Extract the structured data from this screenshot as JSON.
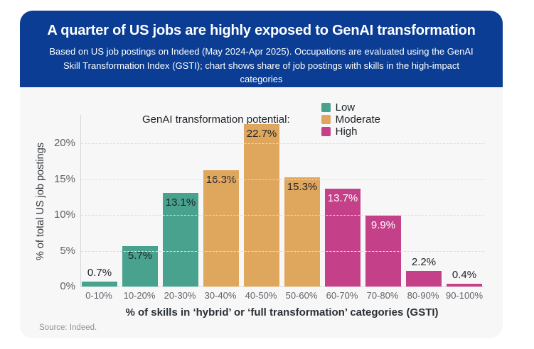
{
  "header": {
    "title": "A quarter of US jobs are highly exposed to GenAI transformation",
    "subtitle": "Based on US job postings on Indeed (May 2024-Apr 2025). Occupations are evaluated using the GenAI Skill Transformation Index (GSTI); chart shows share of job postings with skills in the high-impact categories",
    "background_color": "#0a3d93",
    "text_color": "#ffffff"
  },
  "legend": {
    "title": "GenAI transformation potential:",
    "items": [
      {
        "label": "Low",
        "color": "#48a28e"
      },
      {
        "label": "Moderate",
        "color": "#dfa65e"
      },
      {
        "label": "High",
        "color": "#c4418a"
      }
    ]
  },
  "chart_data": {
    "type": "bar",
    "title": "",
    "xlabel": "% of skills in ‘hybrid’ or ‘full transformation’ categories (GSTI)",
    "ylabel": "% of total US job postings",
    "ylim": [
      0,
      24
    ],
    "yticks": [
      0,
      5,
      10,
      15,
      20
    ],
    "ytick_labels": [
      "0%",
      "5%",
      "10%",
      "15%",
      "20%"
    ],
    "grid": "horizontal-dashed",
    "legend_position": "top",
    "categories": [
      "0-10%",
      "10-20%",
      "20-30%",
      "30-40%",
      "40-50%",
      "50-60%",
      "60-70%",
      "70-80%",
      "80-90%",
      "90-100%"
    ],
    "values": [
      0.7,
      5.7,
      13.1,
      16.3,
      22.7,
      15.3,
      13.7,
      9.9,
      2.2,
      0.4
    ],
    "value_labels": [
      "0.7%",
      "5.7%",
      "13.1%",
      "16.3%",
      "22.7%",
      "15.3%",
      "13.7%",
      "9.9%",
      "2.2%",
      "0.4%"
    ],
    "groups": [
      "Low",
      "Low",
      "Low",
      "Moderate",
      "Moderate",
      "Moderate",
      "High",
      "High",
      "High",
      "High"
    ],
    "colors": {
      "Low": "#48a28e",
      "Moderate": "#dfa65e",
      "High": "#c4418a"
    },
    "inside_label_colors": {
      "Low": "#212529",
      "Moderate": "#212529",
      "High": "#ffffff"
    },
    "outside_label_color": "#212529"
  },
  "source": "Source: Indeed."
}
